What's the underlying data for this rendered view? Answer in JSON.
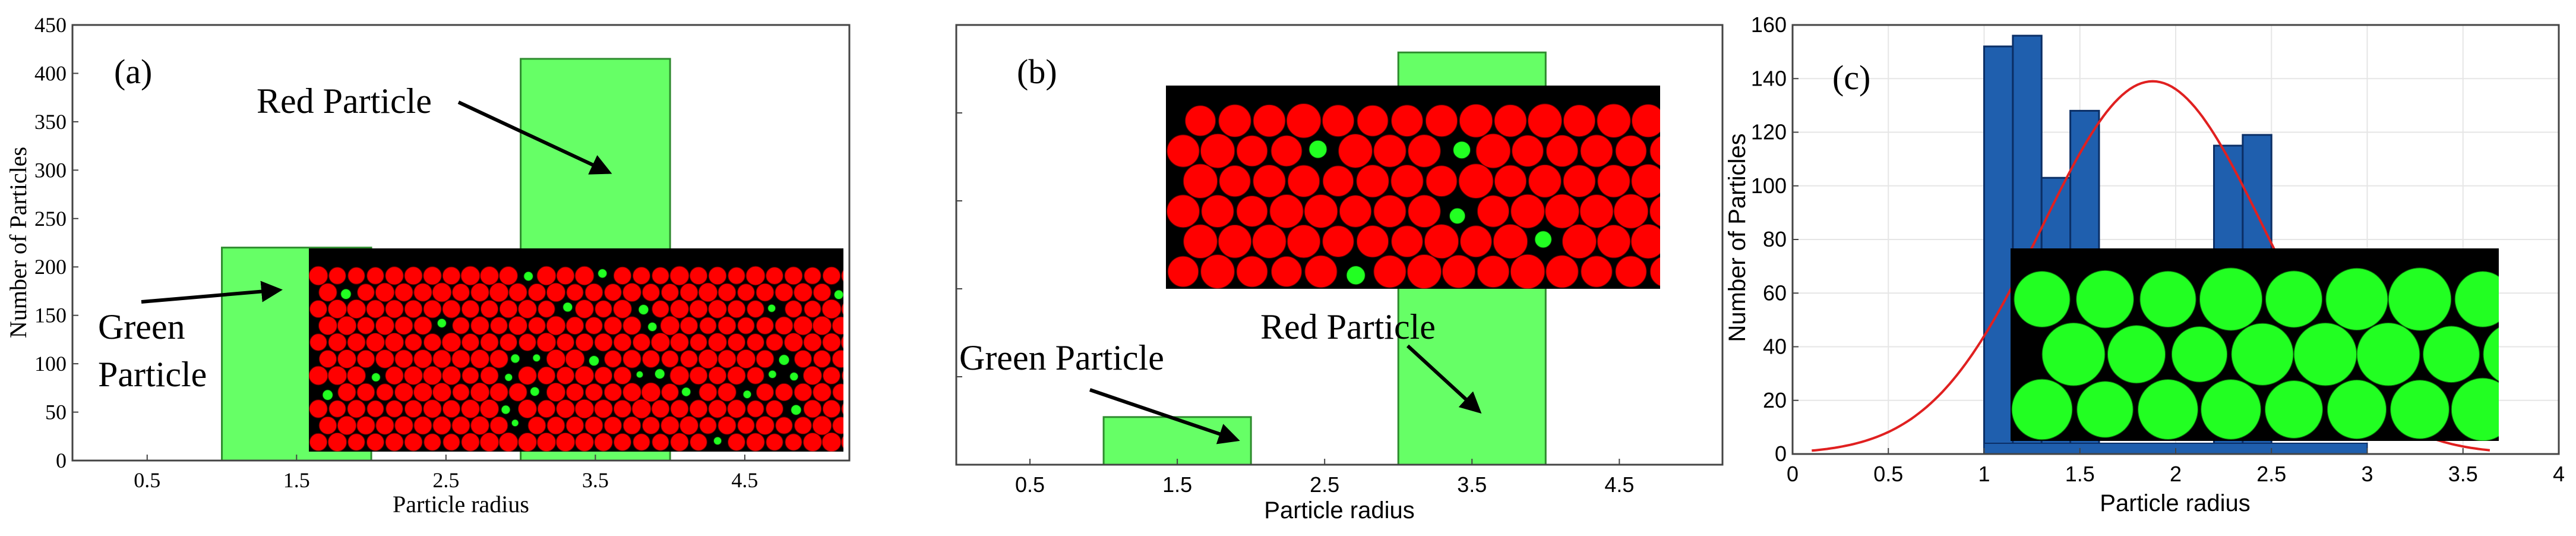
{
  "colors": {
    "green_bar": "#66ff66",
    "green_bar_edge": "#2e8b2e",
    "blue_bar": "#1f5fae",
    "blue_bar_edge": "#0b2f66",
    "fit_line": "#e02020",
    "red_particle": "#ff0000",
    "green_particle": "#22ff22",
    "inset_bg": "#000000",
    "axis": "#444444",
    "grid": "#e6e6e6"
  },
  "chart_data": [
    {
      "panel": "a",
      "panel_label": "(a)",
      "type": "bar",
      "categories": [
        1.5,
        3.5
      ],
      "values": [
        220,
        415
      ],
      "bar_width": 1,
      "xlim": [
        0,
        5.2
      ],
      "ylim": [
        0,
        450
      ],
      "xticks": [
        0.5,
        1.5,
        2.5,
        3.5,
        4.5
      ],
      "xtick_labels": [
        "0.5",
        "1.5",
        "2.5",
        "3.5",
        "4.5"
      ],
      "yticks": [
        0,
        50,
        100,
        150,
        200,
        250,
        300,
        350,
        400,
        450
      ],
      "ytick_labels": [
        "0",
        "50",
        "100",
        "150",
        "200",
        "250",
        "300",
        "350",
        "400",
        "450"
      ],
      "xlabel": "Particle radius",
      "ylabel": "Number of Particles",
      "annotations": [
        {
          "text": "Red Particle",
          "points_to": [
            3.5,
            350
          ]
        },
        {
          "text_lines": [
            "Green",
            "Particle"
          ],
          "points_to": [
            1.3,
            195
          ]
        }
      ],
      "inset": "packing of red particles with scattered green particles"
    },
    {
      "panel": "b",
      "panel_label": "(b)",
      "type": "bar",
      "categories": [
        1.5,
        3.5
      ],
      "values": [
        52,
        450
      ],
      "bar_width": 1,
      "xlim": [
        0,
        5.2
      ],
      "ylim": [
        0,
        480
      ],
      "xticks": [
        0.5,
        1.5,
        2.5,
        3.5,
        4.5
      ],
      "xtick_labels": [
        "0.5",
        "1.5",
        "2.5",
        "3.5",
        "4.5"
      ],
      "xlabel": "Particle radius",
      "ylabel": "",
      "annotations": [
        {
          "text": "Red Particle",
          "points_to": [
            3.5,
            55
          ]
        },
        {
          "text": "Green Particle",
          "points_to": [
            1.8,
            18
          ]
        }
      ],
      "inset": "packing of red particles with few green particles"
    },
    {
      "panel": "c",
      "panel_label": "(c)",
      "type": "bar",
      "bin_edges": [
        1.0,
        1.15,
        1.3,
        1.45,
        1.6,
        1.75,
        1.9,
        2.05,
        2.2,
        2.35,
        2.5
      ],
      "values": [
        152,
        156,
        103,
        128,
        0,
        0,
        0,
        0,
        115,
        119
      ],
      "fit_curve": {
        "type": "normal",
        "peak_x": 1.88,
        "peak_y": 139,
        "sigma": 0.58
      },
      "xlim": [
        0,
        4
      ],
      "ylim": [
        0,
        160
      ],
      "xticks": [
        0,
        0.5,
        1,
        1.5,
        2,
        2.5,
        3,
        3.5,
        4
      ],
      "xtick_labels": [
        "0",
        "0.5",
        "1",
        "1.5",
        "2",
        "2.5",
        "3",
        "3.5",
        "4"
      ],
      "yticks": [
        0,
        20,
        40,
        60,
        80,
        100,
        120,
        140,
        160
      ],
      "ytick_labels": [
        "0",
        "20",
        "40",
        "60",
        "80",
        "100",
        "120",
        "140",
        "160"
      ],
      "xlabel": "Particle radius",
      "ylabel": "Number of Particles",
      "grid": true,
      "inset": "packing of green particles"
    }
  ]
}
